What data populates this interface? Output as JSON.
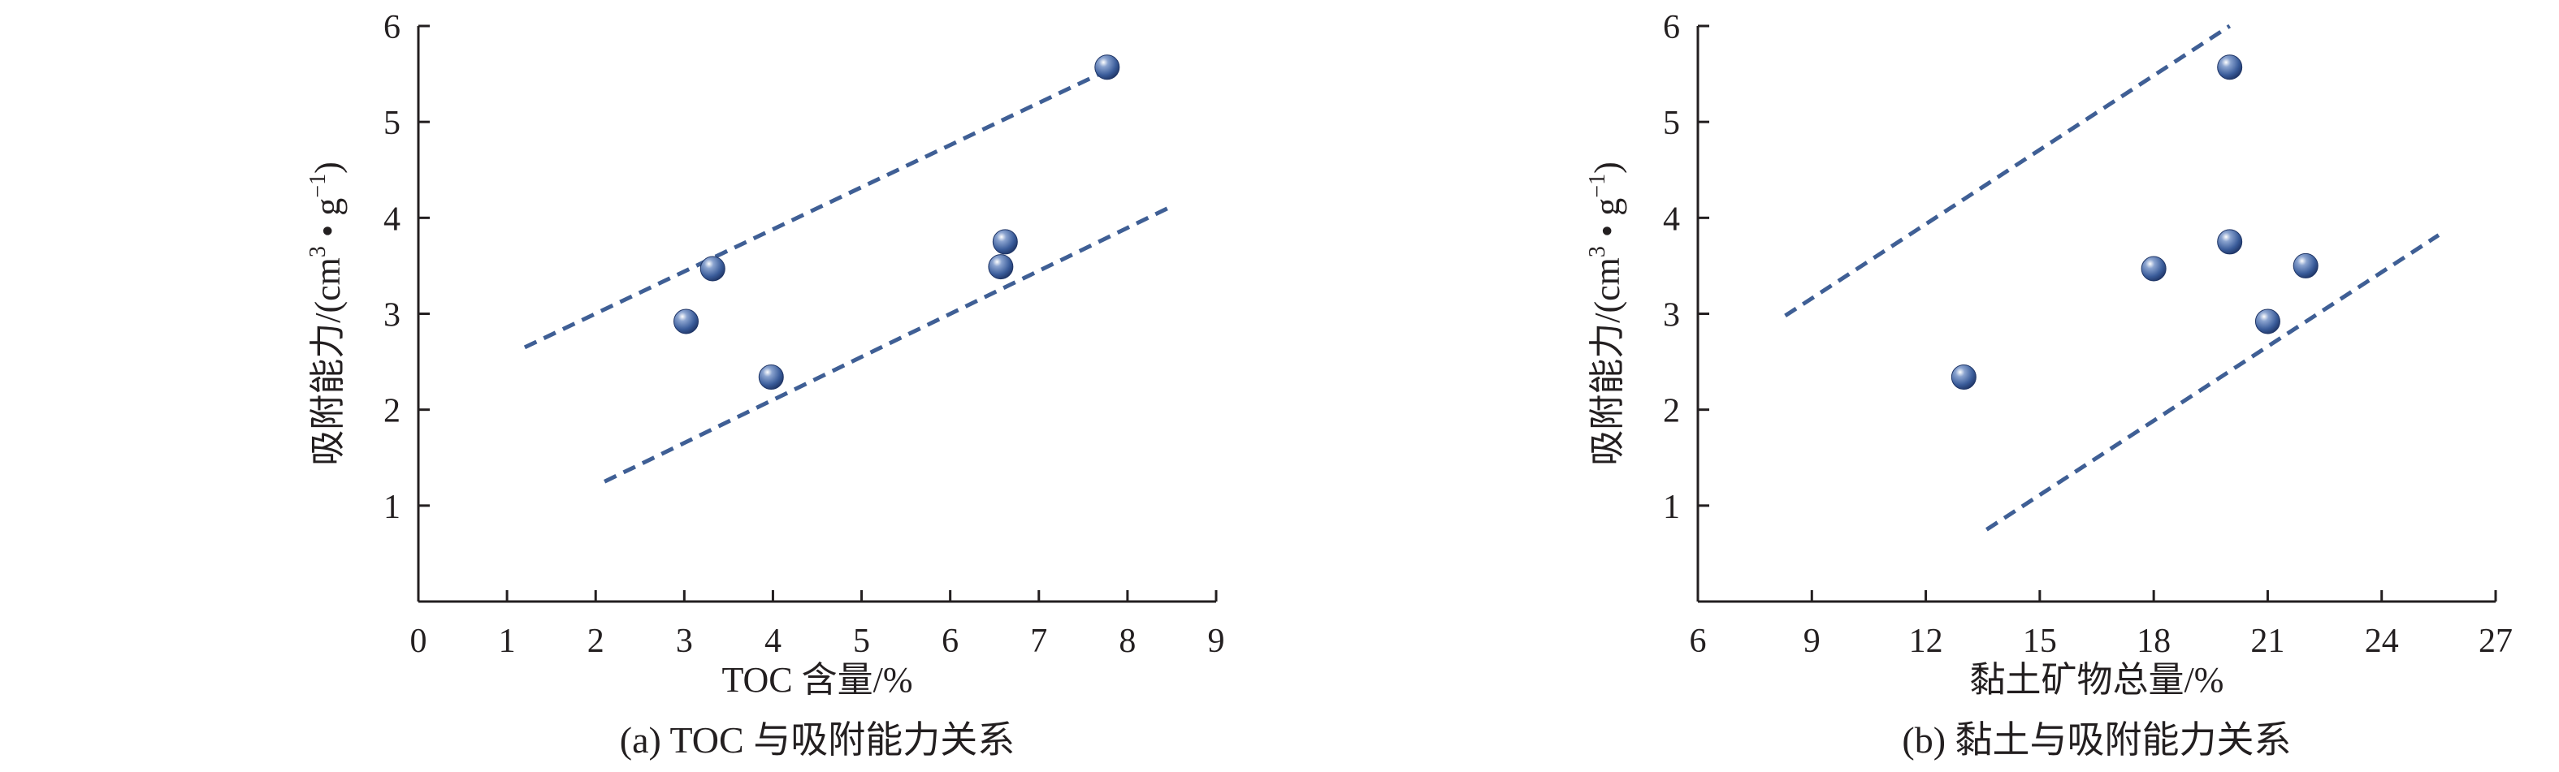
{
  "chart_data": [
    {
      "type": "scatter",
      "caption": "(a) TOC 与吸附能力关系",
      "xlabel": "TOC 含量/%",
      "ylabel_main": "吸附能力/(cm",
      "ylabel_sup1": "3",
      "ylabel_mid": " • g",
      "ylabel_sup2": "−1",
      "ylabel_end": ")",
      "xlim": [
        0,
        9
      ],
      "ylim": [
        0,
        6
      ],
      "xticks": [
        0,
        1,
        2,
        3,
        4,
        5,
        6,
        7,
        8,
        9
      ],
      "yticks": [
        1,
        2,
        3,
        4,
        5,
        6
      ],
      "points": [
        {
          "x": 3.02,
          "y": 2.92
        },
        {
          "x": 3.32,
          "y": 3.47
        },
        {
          "x": 3.98,
          "y": 2.34
        },
        {
          "x": 6.57,
          "y": 3.49
        },
        {
          "x": 6.62,
          "y": 3.75
        },
        {
          "x": 7.77,
          "y": 5.57
        }
      ],
      "bounds": [
        {
          "x": [
            1.2,
            7.8
          ],
          "y": [
            2.65,
            5.55
          ]
        },
        {
          "x": [
            2.1,
            8.5
          ],
          "y": [
            1.25,
            4.12
          ]
        }
      ],
      "grid": false,
      "marker_color": "#3a5c9a"
    },
    {
      "type": "scatter",
      "caption": "(b) 黏土与吸附能力关系",
      "xlabel": "黏土矿物总量/%",
      "ylabel_main": "吸附能力/(cm",
      "ylabel_sup1": "3",
      "ylabel_mid": " • g",
      "ylabel_sup2": "−1",
      "ylabel_end": ")",
      "xlim": [
        6,
        27
      ],
      "ylim": [
        0,
        6
      ],
      "xticks": [
        6,
        9,
        12,
        15,
        18,
        21,
        24,
        27
      ],
      "yticks": [
        1,
        2,
        3,
        4,
        5,
        6
      ],
      "points": [
        {
          "x": 13.0,
          "y": 2.34
        },
        {
          "x": 18.0,
          "y": 3.47
        },
        {
          "x": 20.0,
          "y": 3.75
        },
        {
          "x": 20.0,
          "y": 5.57
        },
        {
          "x": 21.0,
          "y": 2.92
        },
        {
          "x": 22.0,
          "y": 3.5
        }
      ],
      "bounds": [
        {
          "x": [
            8.3,
            20.0
          ],
          "y": [
            2.98,
            6.0
          ]
        },
        {
          "x": [
            13.6,
            25.5
          ],
          "y": [
            0.75,
            3.82
          ]
        }
      ],
      "grid": false,
      "marker_color": "#3a5c9a"
    }
  ]
}
